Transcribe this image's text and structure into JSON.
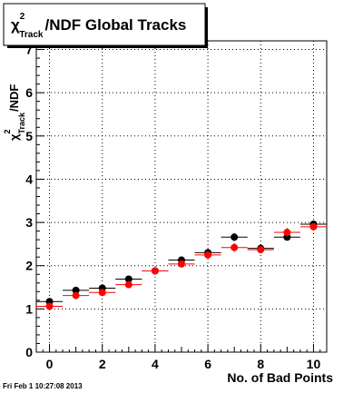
{
  "chart_data": {
    "type": "scatter",
    "title": {
      "chi": "χ",
      "sup": "2",
      "sub": "Track",
      "rest": "/NDF  Global Tracks"
    },
    "xlabel": "No. of Bad Points",
    "ylabel": {
      "chi": "χ",
      "sup": "2",
      "sub": "Track",
      "rest": "/NDF"
    },
    "xlim": [
      -0.5,
      10.5
    ],
    "ylim": [
      0,
      7.2
    ],
    "x_ticks": [
      "0",
      "2",
      "4",
      "6",
      "8",
      "10"
    ],
    "y_ticks": [
      "0",
      "1",
      "2",
      "3",
      "4",
      "5",
      "6",
      "7"
    ],
    "grid": true,
    "legend": "none",
    "series": [
      {
        "color": "#000000",
        "x": [
          0,
          1,
          2,
          3,
          4,
          5,
          6,
          7,
          8,
          9,
          10
        ],
        "y": [
          1.17,
          1.43,
          1.48,
          1.69,
          1.88,
          2.13,
          2.3,
          2.66,
          2.4,
          2.66,
          2.96
        ],
        "yerr": [
          0.04,
          0.04,
          0.04,
          0.05,
          0.05,
          0.06,
          0.06,
          0.09,
          0.07,
          0.08,
          0.07
        ],
        "xerr": 0.5
      },
      {
        "color": "#ff0000",
        "x": [
          0,
          1,
          2,
          3,
          4,
          5,
          6,
          7,
          8,
          9,
          10
        ],
        "y": [
          1.06,
          1.31,
          1.38,
          1.56,
          1.88,
          2.04,
          2.25,
          2.42,
          2.37,
          2.77,
          2.9
        ],
        "yerr": [
          0.04,
          0.05,
          0.05,
          0.05,
          0.05,
          0.06,
          0.06,
          0.1,
          0.08,
          0.1,
          0.08
        ],
        "xerr": 0.5
      }
    ]
  },
  "footer": {
    "timestamp": "Fri Feb  1 10:27:08 2013"
  }
}
